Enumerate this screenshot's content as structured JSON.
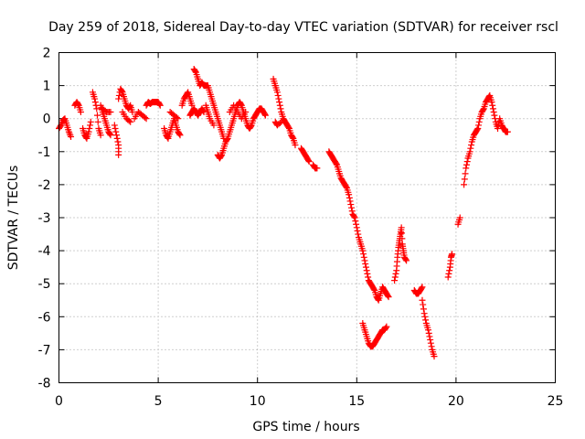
{
  "chart_data": {
    "type": "scatter",
    "title": "Day 259 of 2018, Sidereal Day-to-day VTEC variation (SDTVAR) for receiver rscl",
    "xlabel": "GPS time / hours",
    "ylabel": "SDTVAR / TECUs",
    "xlim": [
      0,
      25
    ],
    "ylim": [
      -8,
      2
    ],
    "xticks": [
      "0",
      "5",
      "10",
      "15",
      "20",
      "25"
    ],
    "yticks": [
      "2",
      "1",
      "0",
      "-1",
      "-2",
      "-3",
      "-4",
      "-5",
      "-6",
      "-7",
      "-8"
    ],
    "grid": true,
    "marker": "plus",
    "color": "#ff0000",
    "series": [
      {
        "name": "rscl",
        "segments": [
          [
            [
              0.0,
              -0.3
            ],
            [
              0.1,
              -0.2
            ],
            [
              0.2,
              -0.05
            ],
            [
              0.3,
              0.0
            ],
            [
              0.4,
              -0.2
            ],
            [
              0.5,
              -0.4
            ],
            [
              0.6,
              -0.55
            ]
          ],
          [
            [
              0.8,
              0.4
            ],
            [
              0.9,
              0.5
            ],
            [
              1.0,
              0.4
            ],
            [
              1.1,
              0.2
            ]
          ],
          [
            [
              1.2,
              -0.3
            ],
            [
              1.3,
              -0.5
            ],
            [
              1.4,
              -0.6
            ],
            [
              1.5,
              -0.4
            ],
            [
              1.6,
              -0.1
            ]
          ],
          [
            [
              1.7,
              0.8
            ],
            [
              1.8,
              0.6
            ],
            [
              1.9,
              0.3
            ],
            [
              2.0,
              -0.3
            ],
            [
              2.1,
              -0.5
            ]
          ],
          [
            [
              2.1,
              0.4
            ],
            [
              2.2,
              0.2
            ],
            [
              2.3,
              0.0
            ],
            [
              2.4,
              -0.2
            ],
            [
              2.5,
              -0.4
            ],
            [
              2.6,
              -0.5
            ]
          ],
          [
            [
              2.2,
              0.3
            ],
            [
              2.4,
              0.2
            ],
            [
              2.6,
              0.2
            ]
          ],
          [
            [
              2.8,
              -0.2
            ],
            [
              2.9,
              -0.5
            ],
            [
              3.0,
              -0.8
            ],
            [
              3.0,
              -1.1
            ]
          ],
          [
            [
              3.0,
              0.6
            ],
            [
              3.1,
              0.9
            ],
            [
              3.2,
              0.8
            ],
            [
              3.3,
              0.6
            ],
            [
              3.4,
              0.4
            ],
            [
              3.5,
              0.3
            ],
            [
              3.6,
              0.4
            ],
            [
              3.7,
              0.2
            ]
          ],
          [
            [
              3.2,
              0.2
            ],
            [
              3.4,
              0.0
            ],
            [
              3.6,
              -0.1
            ]
          ],
          [
            [
              3.8,
              0.0
            ],
            [
              4.0,
              0.2
            ],
            [
              4.2,
              0.1
            ],
            [
              4.4,
              0.0
            ]
          ],
          [
            [
              4.4,
              0.4
            ],
            [
              4.5,
              0.5
            ],
            [
              4.6,
              0.45
            ],
            [
              4.7,
              0.5
            ],
            [
              4.8,
              0.5
            ],
            [
              4.9,
              0.5
            ],
            [
              5.0,
              0.5
            ],
            [
              5.1,
              0.4
            ]
          ],
          [
            [
              5.3,
              -0.3
            ],
            [
              5.4,
              -0.5
            ],
            [
              5.5,
              -0.6
            ],
            [
              5.6,
              -0.4
            ],
            [
              5.7,
              -0.2
            ],
            [
              5.8,
              0.0
            ],
            [
              5.9,
              -0.2
            ],
            [
              6.0,
              -0.4
            ],
            [
              6.1,
              -0.5
            ]
          ],
          [
            [
              5.6,
              0.2
            ],
            [
              5.8,
              0.1
            ],
            [
              6.0,
              0.0
            ]
          ],
          [
            [
              6.2,
              0.4
            ],
            [
              6.3,
              0.6
            ],
            [
              6.4,
              0.7
            ],
            [
              6.5,
              0.8
            ],
            [
              6.6,
              0.6
            ],
            [
              6.7,
              0.4
            ]
          ],
          [
            [
              6.6,
              0.1
            ],
            [
              6.7,
              0.2
            ],
            [
              6.8,
              0.3
            ],
            [
              6.9,
              0.2
            ],
            [
              7.0,
              0.1
            ],
            [
              7.1,
              0.2
            ],
            [
              7.2,
              0.3
            ],
            [
              7.3,
              0.2
            ]
          ],
          [
            [
              6.8,
              1.5
            ],
            [
              6.9,
              1.4
            ],
            [
              7.0,
              1.2
            ],
            [
              7.1,
              1.0
            ],
            [
              7.2,
              1.1
            ],
            [
              7.3,
              1.0
            ],
            [
              7.4,
              1.0
            ],
            [
              7.5,
              1.0
            ],
            [
              7.6,
              0.8
            ],
            [
              7.7,
              0.6
            ],
            [
              7.8,
              0.4
            ],
            [
              7.9,
              0.2
            ],
            [
              8.0,
              0.0
            ],
            [
              8.1,
              -0.2
            ],
            [
              8.2,
              -0.4
            ],
            [
              8.3,
              -0.6
            ]
          ],
          [
            [
              7.4,
              0.4
            ],
            [
              7.5,
              0.2
            ],
            [
              7.6,
              0.0
            ],
            [
              7.8,
              -0.2
            ]
          ],
          [
            [
              8.0,
              -1.1
            ],
            [
              8.1,
              -1.2
            ],
            [
              8.2,
              -1.1
            ],
            [
              8.3,
              -0.9
            ],
            [
              8.4,
              -0.7
            ],
            [
              8.5,
              -0.6
            ],
            [
              8.6,
              -0.4
            ],
            [
              8.7,
              -0.2
            ],
            [
              8.8,
              0.0
            ],
            [
              8.9,
              0.2
            ],
            [
              9.0,
              0.4
            ],
            [
              9.1,
              0.5
            ],
            [
              9.2,
              0.4
            ],
            [
              9.3,
              0.2
            ],
            [
              9.4,
              0.0
            ],
            [
              9.5,
              -0.2
            ],
            [
              9.6,
              -0.3
            ],
            [
              9.7,
              -0.2
            ],
            [
              9.8,
              0.0
            ],
            [
              9.9,
              0.1
            ],
            [
              10.0,
              0.2
            ],
            [
              10.1,
              0.3
            ],
            [
              10.2,
              0.3
            ],
            [
              10.3,
              0.2
            ],
            [
              10.4,
              0.1
            ]
          ],
          [
            [
              8.6,
              0.2
            ],
            [
              8.8,
              0.4
            ],
            [
              9.0,
              0.2
            ],
            [
              9.2,
              0.0
            ],
            [
              9.4,
              0.2
            ]
          ],
          [
            [
              10.8,
              1.2
            ],
            [
              10.9,
              1.0
            ],
            [
              11.0,
              0.8
            ],
            [
              11.1,
              0.5
            ],
            [
              11.2,
              0.2
            ],
            [
              11.3,
              0.0
            ],
            [
              11.4,
              -0.1
            ],
            [
              11.5,
              -0.2
            ],
            [
              11.6,
              -0.3
            ],
            [
              11.7,
              -0.5
            ],
            [
              11.8,
              -0.6
            ],
            [
              11.9,
              -0.8
            ]
          ],
          [
            [
              10.9,
              -0.1
            ],
            [
              11.0,
              -0.2
            ],
            [
              11.2,
              -0.1
            ]
          ],
          [
            [
              12.2,
              -0.9
            ],
            [
              12.3,
              -1.0
            ],
            [
              12.4,
              -1.1
            ],
            [
              12.5,
              -1.2
            ],
            [
              12.6,
              -1.3
            ]
          ],
          [
            [
              12.8,
              -1.4
            ],
            [
              12.9,
              -1.5
            ],
            [
              13.0,
              -1.5
            ]
          ],
          [
            [
              13.6,
              -1.0
            ],
            [
              13.7,
              -1.1
            ],
            [
              13.8,
              -1.2
            ],
            [
              13.9,
              -1.3
            ],
            [
              14.0,
              -1.4
            ],
            [
              14.1,
              -1.6
            ],
            [
              14.2,
              -1.8
            ],
            [
              14.3,
              -1.9
            ],
            [
              14.4,
              -2.0
            ],
            [
              14.5,
              -2.1
            ],
            [
              14.6,
              -2.3
            ],
            [
              14.7,
              -2.6
            ],
            [
              14.8,
              -2.9
            ],
            [
              14.9,
              -3.0
            ],
            [
              15.0,
              -3.3
            ],
            [
              15.1,
              -3.6
            ],
            [
              15.2,
              -3.8
            ],
            [
              15.3,
              -4.0
            ],
            [
              15.4,
              -4.3
            ],
            [
              15.5,
              -4.6
            ],
            [
              15.6,
              -4.9
            ],
            [
              15.7,
              -5.0
            ],
            [
              15.8,
              -5.1
            ],
            [
              15.9,
              -5.2
            ],
            [
              16.0,
              -5.4
            ],
            [
              16.1,
              -5.5
            ],
            [
              16.2,
              -5.3
            ],
            [
              16.3,
              -5.1
            ],
            [
              16.4,
              -5.2
            ],
            [
              16.5,
              -5.3
            ],
            [
              16.6,
              -5.4
            ]
          ],
          [
            [
              15.3,
              -6.2
            ],
            [
              15.4,
              -6.4
            ],
            [
              15.5,
              -6.6
            ],
            [
              15.6,
              -6.8
            ],
            [
              15.7,
              -6.9
            ],
            [
              15.8,
              -6.9
            ],
            [
              15.9,
              -6.8
            ],
            [
              16.0,
              -6.7
            ],
            [
              16.1,
              -6.6
            ],
            [
              16.2,
              -6.5
            ],
            [
              16.3,
              -6.4
            ],
            [
              16.4,
              -6.4
            ],
            [
              16.5,
              -6.3
            ]
          ],
          [
            [
              16.9,
              -4.9
            ],
            [
              17.0,
              -4.6
            ],
            [
              17.05,
              -4.2
            ],
            [
              17.1,
              -3.9
            ],
            [
              17.15,
              -3.7
            ],
            [
              17.2,
              -3.5
            ],
            [
              17.25,
              -3.3
            ],
            [
              17.3,
              -3.8
            ],
            [
              17.35,
              -4.0
            ],
            [
              17.4,
              -4.2
            ],
            [
              17.5,
              -4.3
            ]
          ],
          [
            [
              17.9,
              -5.2
            ],
            [
              18.0,
              -5.3
            ],
            [
              18.1,
              -5.3
            ],
            [
              18.2,
              -5.2
            ],
            [
              18.3,
              -5.1
            ]
          ],
          [
            [
              18.3,
              -5.5
            ],
            [
              18.4,
              -5.9
            ],
            [
              18.5,
              -6.2
            ],
            [
              18.6,
              -6.4
            ],
            [
              18.7,
              -6.7
            ],
            [
              18.8,
              -7.0
            ],
            [
              18.9,
              -7.2
            ]
          ],
          [
            [
              19.6,
              -4.8
            ],
            [
              19.7,
              -4.5
            ],
            [
              19.75,
              -4.2
            ],
            [
              19.8,
              -4.1
            ]
          ],
          [
            [
              20.1,
              -3.2
            ],
            [
              20.2,
              -3.0
            ]
          ],
          [
            [
              20.4,
              -2.0
            ],
            [
              20.5,
              -1.5
            ],
            [
              20.6,
              -1.2
            ],
            [
              20.7,
              -1.0
            ],
            [
              20.8,
              -0.7
            ],
            [
              20.9,
              -0.5
            ],
            [
              21.0,
              -0.4
            ],
            [
              21.1,
              -0.3
            ],
            [
              21.2,
              0.0
            ],
            [
              21.3,
              0.2
            ],
            [
              21.4,
              0.3
            ],
            [
              21.5,
              0.5
            ],
            [
              21.6,
              0.6
            ],
            [
              21.7,
              0.7
            ],
            [
              21.8,
              0.5
            ],
            [
              21.9,
              0.2
            ],
            [
              22.0,
              -0.1
            ],
            [
              22.1,
              -0.3
            ],
            [
              22.2,
              0.0
            ],
            [
              22.3,
              -0.2
            ],
            [
              22.4,
              -0.3
            ],
            [
              22.5,
              -0.4
            ],
            [
              22.6,
              -0.4
            ]
          ]
        ]
      }
    ]
  }
}
